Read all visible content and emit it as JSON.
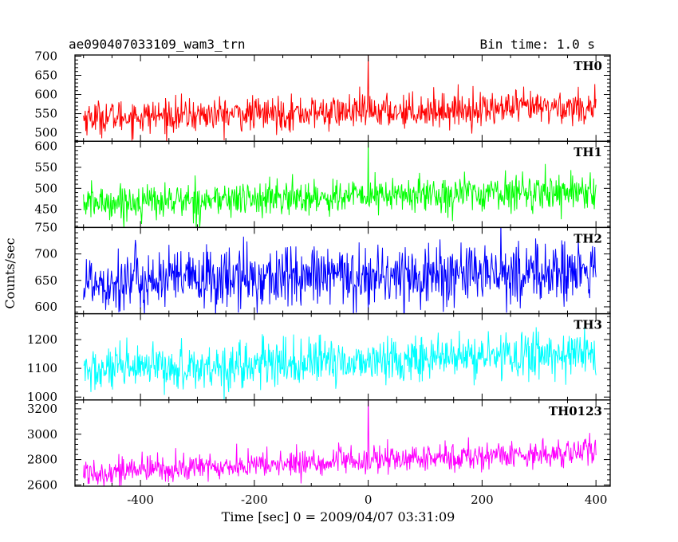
{
  "chart_data": {
    "type": "line",
    "title": "ae090407033109_wam3_trn",
    "bin_time": "Bin time: 1.0 s",
    "xlabel": "Time [sec] 0 = 2009/04/07 03:31:09",
    "ylabel": "Counts/sec",
    "xlim": [
      -515,
      425
    ],
    "x_ticks": [
      -400,
      -200,
      0,
      200,
      400
    ],
    "series_x_range": [
      -500,
      400
    ],
    "panels": [
      {
        "name": "TH0",
        "color": "#ff0000",
        "ylim": [
          478,
          703
        ],
        "y_ticks": [
          500,
          550,
          600,
          650,
          700
        ],
        "mean_start": 540,
        "mean_end": 568,
        "noise": 22,
        "spike_at_zero": 705
      },
      {
        "name": "TH1",
        "color": "#00ff00",
        "ylim": [
          407,
          612
        ],
        "y_ticks": [
          450,
          500,
          550,
          600
        ],
        "mean_start": 465,
        "mean_end": 495,
        "noise": 21,
        "spike_at_zero": 615
      },
      {
        "name": "TH2",
        "color": "#0000ff",
        "ylim": [
          587,
          750
        ],
        "y_ticks": [
          600,
          650,
          700,
          750
        ],
        "mean_start": 648,
        "mean_end": 666,
        "noise": 30,
        "spike_at_zero": null
      },
      {
        "name": "TH3",
        "color": "#00ffff",
        "ylim": [
          990,
          1290
        ],
        "y_ticks": [
          1000,
          1100,
          1200
        ],
        "mean_start": 1090,
        "mean_end": 1155,
        "noise": 40,
        "spike_at_zero": null
      },
      {
        "name": "TH0123",
        "color": "#ff00ff",
        "ylim": [
          2590,
          3270
        ],
        "y_ticks": [
          2600,
          2800,
          3000,
          3200
        ],
        "mean_start": 2700,
        "mean_end": 2865,
        "noise": 55,
        "spike_at_zero": 3300
      }
    ]
  }
}
